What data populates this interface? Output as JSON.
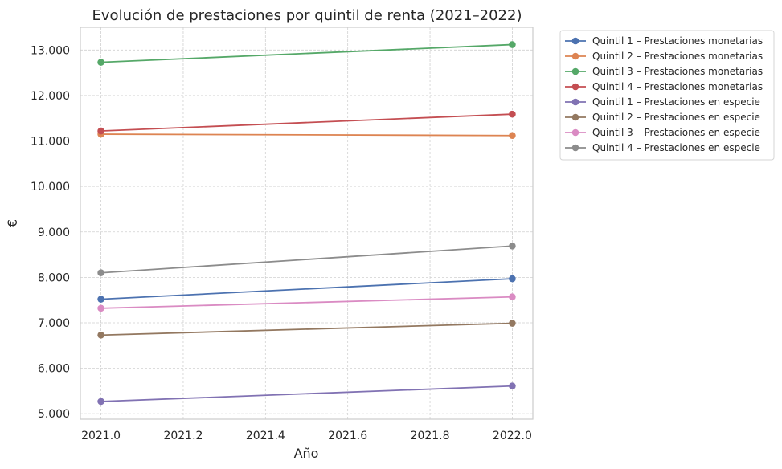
{
  "chart_data": {
    "type": "line",
    "title": "Evolución de prestaciones por quintil de renta (2021–2022)",
    "xlabel": "Año",
    "ylabel": "€",
    "x": [
      2021,
      2022
    ],
    "xlim": [
      2020.95,
      2022.05
    ],
    "ylim": [
      4880,
      13500
    ],
    "xticks": [
      2021.0,
      2021.2,
      2021.4,
      2021.6,
      2021.8,
      2022.0
    ],
    "xtick_labels": [
      "2021.0",
      "2021.2",
      "2021.4",
      "2021.6",
      "2021.8",
      "2022.0"
    ],
    "yticks": [
      5000,
      6000,
      7000,
      8000,
      9000,
      10000,
      11000,
      12000,
      13000
    ],
    "ytick_labels": [
      "5.000",
      "6.000",
      "7.000",
      "8.000",
      "9.000",
      "10.000",
      "11.000",
      "12.000",
      "13.000"
    ],
    "grid": true,
    "legend_position": "outside-top-right",
    "series": [
      {
        "name": "Quintil 1 – Prestaciones monetarias",
        "color": "#4c72b0",
        "values": [
          7520,
          7970
        ]
      },
      {
        "name": "Quintil 2 – Prestaciones monetarias",
        "color": "#dd8452",
        "values": [
          11150,
          11120
        ]
      },
      {
        "name": "Quintil 3 – Prestaciones monetarias",
        "color": "#55a868",
        "values": [
          12730,
          13120
        ]
      },
      {
        "name": "Quintil 4 – Prestaciones monetarias",
        "color": "#c44e52",
        "values": [
          11220,
          11590
        ]
      },
      {
        "name": "Quintil 1 – Prestaciones en especie",
        "color": "#8172b3",
        "values": [
          5270,
          5610
        ]
      },
      {
        "name": "Quintil 2 – Prestaciones en especie",
        "color": "#937860",
        "values": [
          6730,
          6990
        ]
      },
      {
        "name": "Quintil 3 – Prestaciones en especie",
        "color": "#da8bc3",
        "values": [
          7320,
          7570
        ]
      },
      {
        "name": "Quintil 4 – Prestaciones en especie",
        "color": "#8c8c8c",
        "values": [
          8100,
          8690
        ]
      }
    ]
  }
}
